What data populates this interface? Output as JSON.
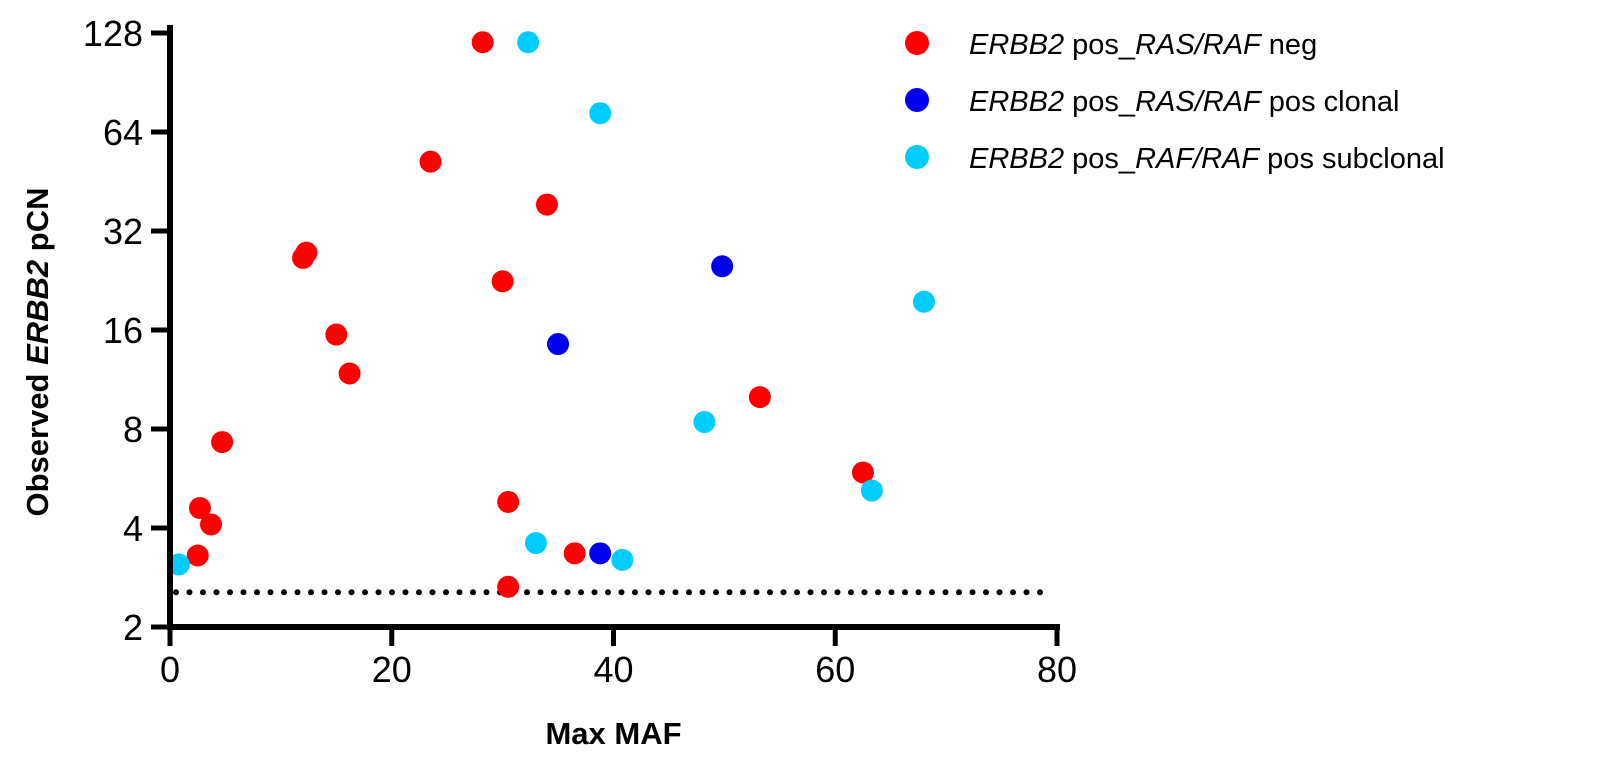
{
  "chart_data": {
    "type": "scatter",
    "xlabel": "Max MAF",
    "ylabel": {
      "pre": "Observed ",
      "gene": "ERBB2",
      "post": " pCN"
    },
    "xlim": [
      0,
      80
    ],
    "ylim": [
      2,
      128
    ],
    "y_scale": "log2",
    "x_ticks": [
      0,
      20,
      40,
      60,
      80
    ],
    "y_ticks": [
      2,
      4,
      8,
      16,
      32,
      64,
      128
    ],
    "grid": false,
    "legend_position": "top-right",
    "threshold_line": {
      "y": 2.55,
      "style": "dotted",
      "x_range": [
        0,
        80
      ]
    },
    "series": [
      {
        "name": "ERBB2 pos_RAS/RAF neg",
        "legend_parts": [
          {
            "text": "ERBB2",
            "italic": true
          },
          {
            "text": " pos_",
            "italic": false
          },
          {
            "text": "RAS/RAF",
            "italic": true
          },
          {
            "text": " neg",
            "italic": false
          }
        ],
        "color": "#ff0000",
        "points": [
          {
            "x": 28.2,
            "y": 120
          },
          {
            "x": 23.5,
            "y": 52
          },
          {
            "x": 34,
            "y": 38.5
          },
          {
            "x": 12.3,
            "y": 27.5
          },
          {
            "x": 12,
            "y": 26.5
          },
          {
            "x": 30,
            "y": 22.5
          },
          {
            "x": 15,
            "y": 15.5
          },
          {
            "x": 16.2,
            "y": 11.8
          },
          {
            "x": 53.2,
            "y": 10
          },
          {
            "x": 4.7,
            "y": 7.3
          },
          {
            "x": 62.5,
            "y": 5.9
          },
          {
            "x": 30.5,
            "y": 4.8
          },
          {
            "x": 2.7,
            "y": 4.6
          },
          {
            "x": 3.7,
            "y": 4.1
          },
          {
            "x": 36.5,
            "y": 3.35
          },
          {
            "x": 2.5,
            "y": 3.3
          },
          {
            "x": 30.5,
            "y": 2.65
          }
        ]
      },
      {
        "name": "ERBB2 pos_RAS/RAF pos clonal",
        "legend_parts": [
          {
            "text": "ERBB2",
            "italic": true
          },
          {
            "text": " pos_",
            "italic": false
          },
          {
            "text": "RAS/RAF",
            "italic": true
          },
          {
            "text": " pos clonal",
            "italic": false
          }
        ],
        "color": "#0000ee",
        "points": [
          {
            "x": 49.8,
            "y": 25
          },
          {
            "x": 35,
            "y": 14.5
          },
          {
            "x": 38.8,
            "y": 3.35
          }
        ]
      },
      {
        "name": "ERBB2 pos_RAF/RAF pos subclonal",
        "legend_parts": [
          {
            "text": "ERBB2",
            "italic": true
          },
          {
            "text": " pos_",
            "italic": false
          },
          {
            "text": "RAF/RAF",
            "italic": true
          },
          {
            "text": " pos subclonal",
            "italic": false
          }
        ],
        "color": "#00ccff",
        "points": [
          {
            "x": 32.3,
            "y": 120
          },
          {
            "x": 38.8,
            "y": 73
          },
          {
            "x": 68,
            "y": 19.5
          },
          {
            "x": 48.2,
            "y": 8.4
          },
          {
            "x": 63.3,
            "y": 5.2
          },
          {
            "x": 33,
            "y": 3.6
          },
          {
            "x": 40.8,
            "y": 3.2
          },
          {
            "x": 0.8,
            "y": 3.1
          }
        ]
      }
    ]
  }
}
